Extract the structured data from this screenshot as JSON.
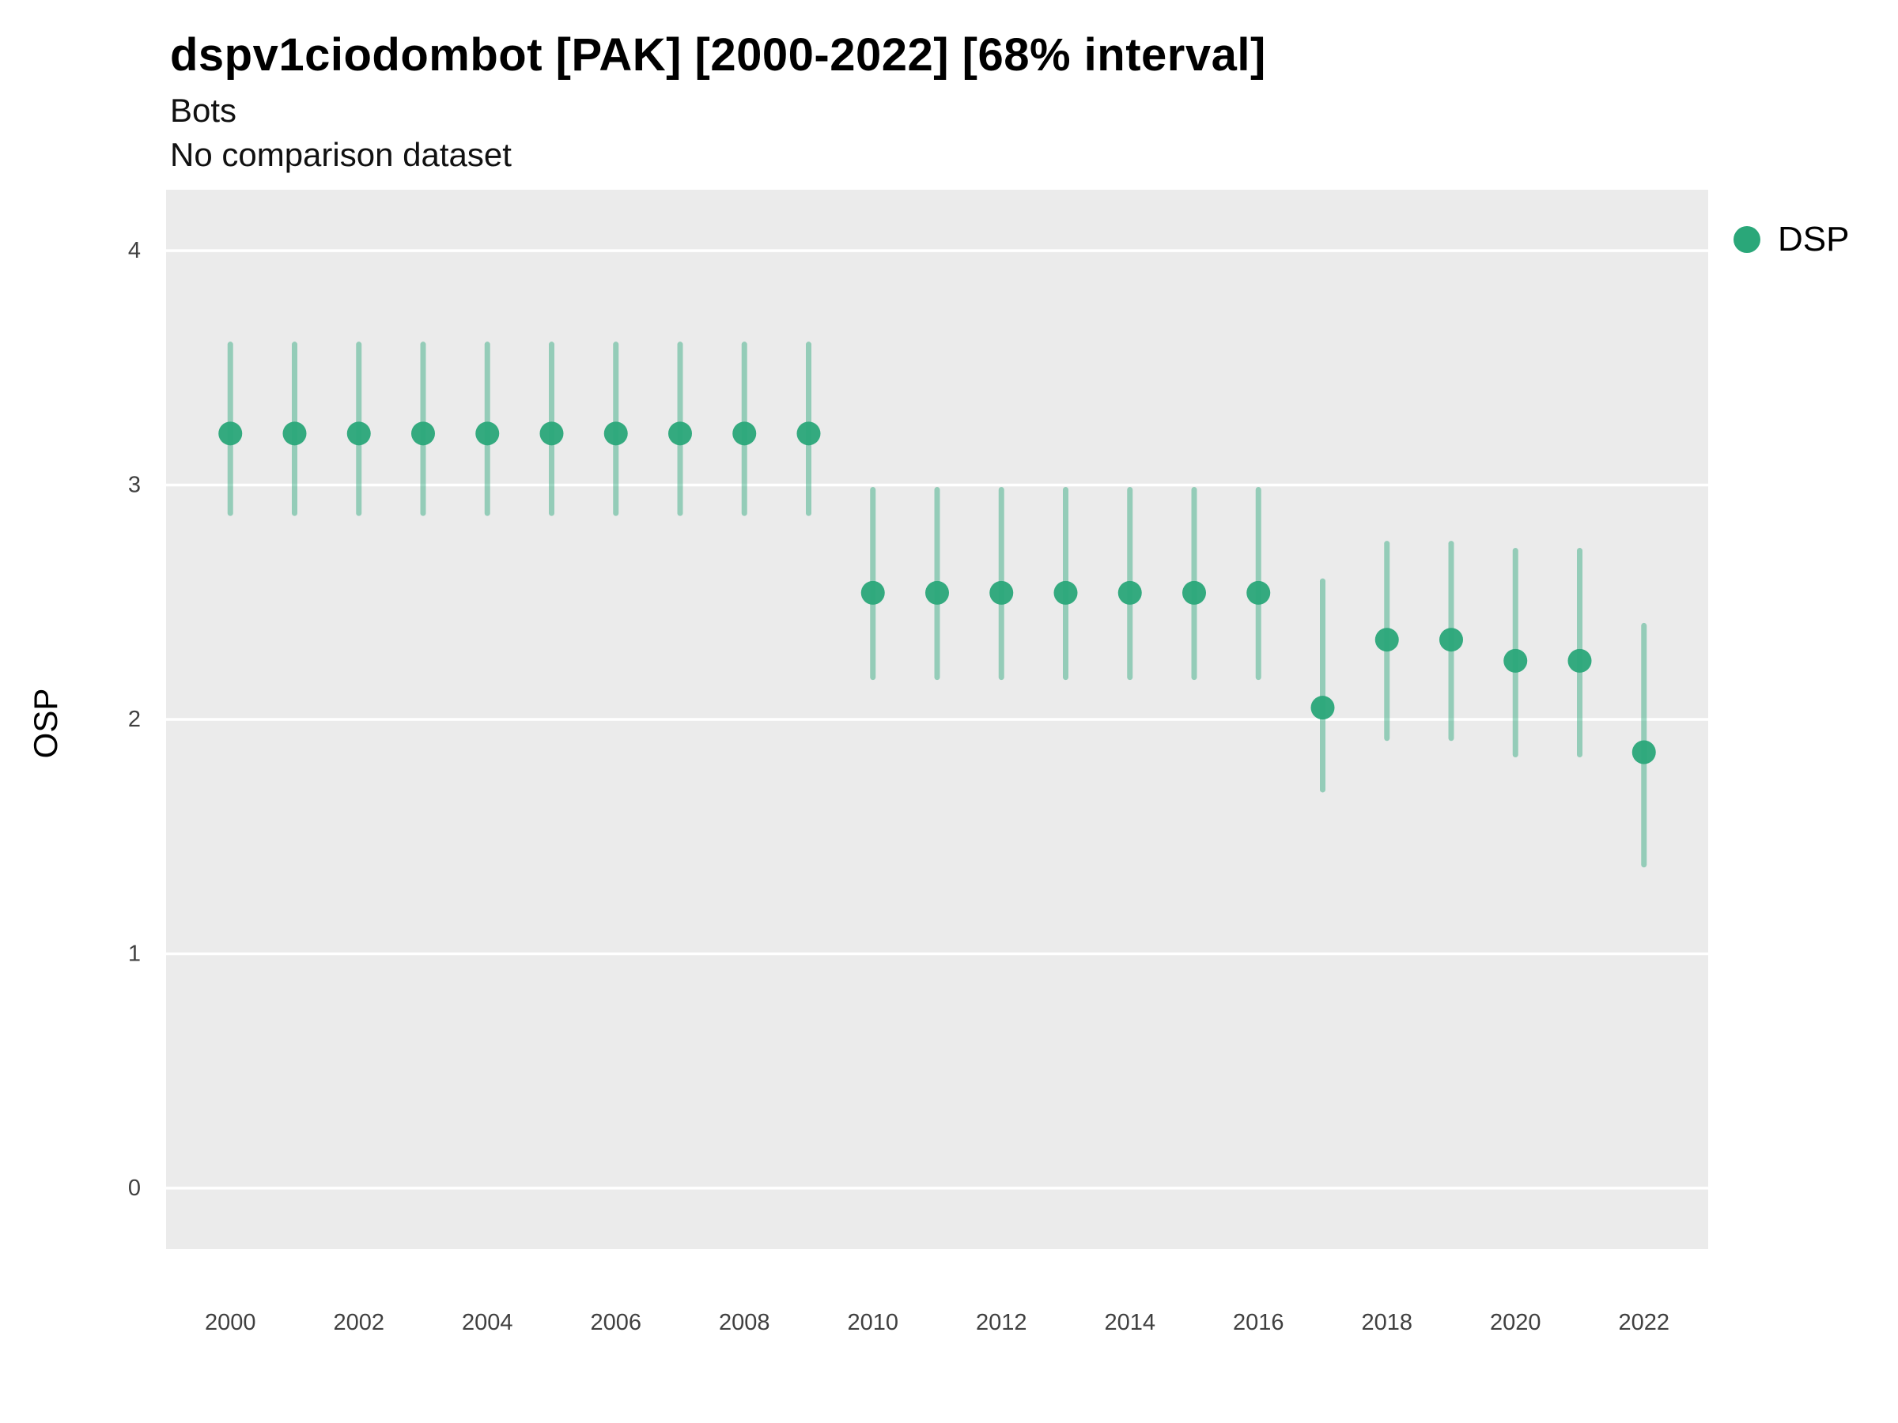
{
  "chart": {
    "title": "dspv1ciodombot [PAK] [2000-2022] [68% interval]",
    "subtitle1": "Bots",
    "subtitle2": "No comparison dataset",
    "ylabel": "OSP",
    "legend": {
      "label": "DSP",
      "color": "#2aa779"
    }
  },
  "chart_data": {
    "type": "scatter",
    "title": "dspv1ciodombot [PAK] [2000-2022] [68% interval]",
    "subtitle": [
      "Bots",
      "No comparison dataset"
    ],
    "series_name": "DSP",
    "interval": "68%",
    "xlabel": "",
    "ylabel": "OSP",
    "x": [
      2000,
      2001,
      2002,
      2003,
      2004,
      2005,
      2006,
      2007,
      2008,
      2009,
      2010,
      2011,
      2012,
      2013,
      2014,
      2015,
      2016,
      2017,
      2018,
      2019,
      2020,
      2021,
      2022
    ],
    "estimates": [
      3.22,
      3.22,
      3.22,
      3.22,
      3.22,
      3.22,
      3.22,
      3.22,
      3.22,
      3.22,
      2.54,
      2.54,
      2.54,
      2.54,
      2.54,
      2.54,
      2.54,
      2.05,
      2.34,
      2.34,
      2.25,
      2.25,
      1.86
    ],
    "lower": [
      2.88,
      2.88,
      2.88,
      2.88,
      2.88,
      2.88,
      2.88,
      2.88,
      2.88,
      2.88,
      2.18,
      2.18,
      2.18,
      2.18,
      2.18,
      2.18,
      2.18,
      1.7,
      1.92,
      1.92,
      1.85,
      1.85,
      1.38
    ],
    "upper": [
      3.6,
      3.6,
      3.6,
      3.6,
      3.6,
      3.6,
      3.6,
      3.6,
      3.6,
      3.6,
      2.98,
      2.98,
      2.98,
      2.98,
      2.98,
      2.98,
      2.98,
      2.59,
      2.75,
      2.75,
      2.72,
      2.72,
      2.4
    ],
    "xticks": [
      2000,
      2002,
      2004,
      2006,
      2008,
      2010,
      2012,
      2014,
      2016,
      2018,
      2020,
      2022
    ],
    "yticks": [
      0,
      1,
      2,
      3,
      4
    ],
    "xlim": [
      1999,
      2023
    ],
    "ylim": [
      -0.26,
      4.26
    ],
    "grid": "major-horizontal",
    "legend_position": "right",
    "colors": {
      "point": "#2aa779",
      "interval_line": "#2aa779",
      "panel_bg": "#ebebeb",
      "grid": "#ffffff",
      "tick_text": "#404040"
    }
  }
}
